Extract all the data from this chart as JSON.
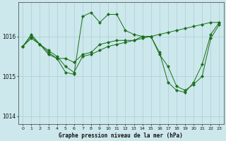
{
  "title": "Graphe pression niveau de la mer (hPa)",
  "background_color": "#cce8ec",
  "grid_color": "#aacdd4",
  "line_color": "#1a6e1a",
  "marker_color": "#1a6e1a",
  "x_ticks": [
    0,
    1,
    2,
    3,
    4,
    5,
    6,
    7,
    8,
    9,
    10,
    11,
    12,
    13,
    14,
    15,
    16,
    17,
    18,
    19,
    20,
    21,
    22,
    23
  ],
  "ylim": [
    1013.8,
    1016.85
  ],
  "y_ticks": [
    1014,
    1015,
    1016
  ],
  "series": [
    [
      1015.75,
      1016.0,
      1015.8,
      1015.55,
      1015.45,
      1015.1,
      1015.05,
      1016.5,
      1016.6,
      1016.35,
      1016.55,
      1016.55,
      1016.15,
      1016.05,
      1016.0,
      1016.0,
      1015.6,
      1014.85,
      1014.65,
      1014.6,
      1014.85,
      1015.3,
      1016.05,
      1016.35
    ],
    [
      1015.75,
      1015.95,
      1015.8,
      1015.6,
      1015.45,
      1015.45,
      1015.35,
      1015.55,
      1015.6,
      1015.8,
      1015.85,
      1015.9,
      1015.9,
      1015.9,
      1016.0,
      1016.0,
      1015.55,
      1015.25,
      1014.75,
      1014.65,
      1014.8,
      1015.0,
      1015.95,
      1016.3
    ],
    [
      1015.75,
      1016.05,
      1015.8,
      1015.65,
      1015.5,
      1015.25,
      1015.1,
      1015.5,
      1015.55,
      1015.65,
      1015.75,
      1015.8,
      1015.85,
      1015.9,
      1015.95,
      1016.0,
      1016.05,
      1016.1,
      1016.15,
      1016.2,
      1016.25,
      1016.3,
      1016.35,
      1016.35
    ]
  ]
}
